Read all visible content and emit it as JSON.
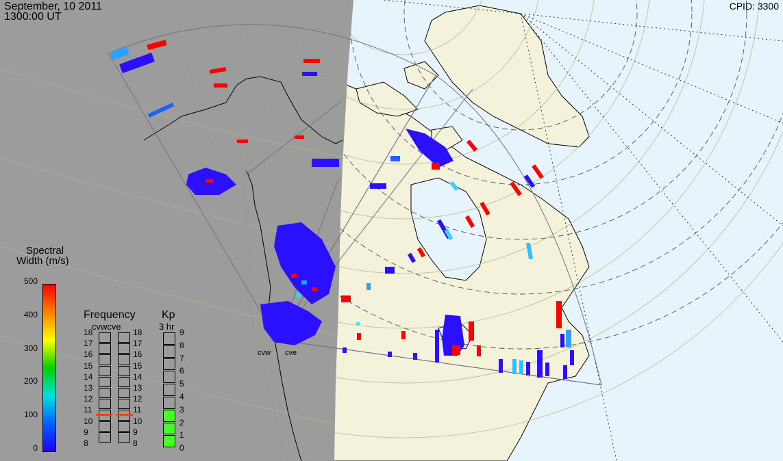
{
  "header": {
    "date": "September, 10 2011",
    "time": "1300:00 UT",
    "cpid_label": "CPID:",
    "cpid_value": "3300"
  },
  "radars": [
    {
      "code": "cvw"
    },
    {
      "code": "cve"
    }
  ],
  "spectral_width_scale": {
    "title_line1": "Spectral",
    "title_line2": "Width (m/s)",
    "ticks": [
      "500",
      "400",
      "300",
      "200",
      "100",
      "0"
    ],
    "colors": [
      "#ff0000",
      "#ff8000",
      "#ffff00",
      "#00d000",
      "#00e0e0",
      "#0060ff",
      "#2000ff"
    ]
  },
  "frequency_panel": {
    "title": "Frequency",
    "subtitle": "cvwcve",
    "ticks": [
      "18",
      "17",
      "16",
      "15",
      "14",
      "13",
      "12",
      "11",
      "10",
      "9",
      "8"
    ],
    "cvw_mhz": 10.6,
    "cve_mhz": 10.6,
    "marker_color": "#ff4000"
  },
  "kp_panel": {
    "title": "Kp",
    "subtitle": "3 hr",
    "ticks": [
      "9",
      "8",
      "7",
      "6",
      "5",
      "4",
      "3",
      "2",
      "1",
      "0"
    ],
    "value": 3,
    "fill_color": "#44ff22"
  },
  "colors": {
    "night_side": "#999999",
    "land": "#f5f2dc",
    "ocean_day": "#e8f4fb",
    "fov_outline": "#707080",
    "grid_lat": "#b8c8a0",
    "grid_mag": "#505050"
  }
}
